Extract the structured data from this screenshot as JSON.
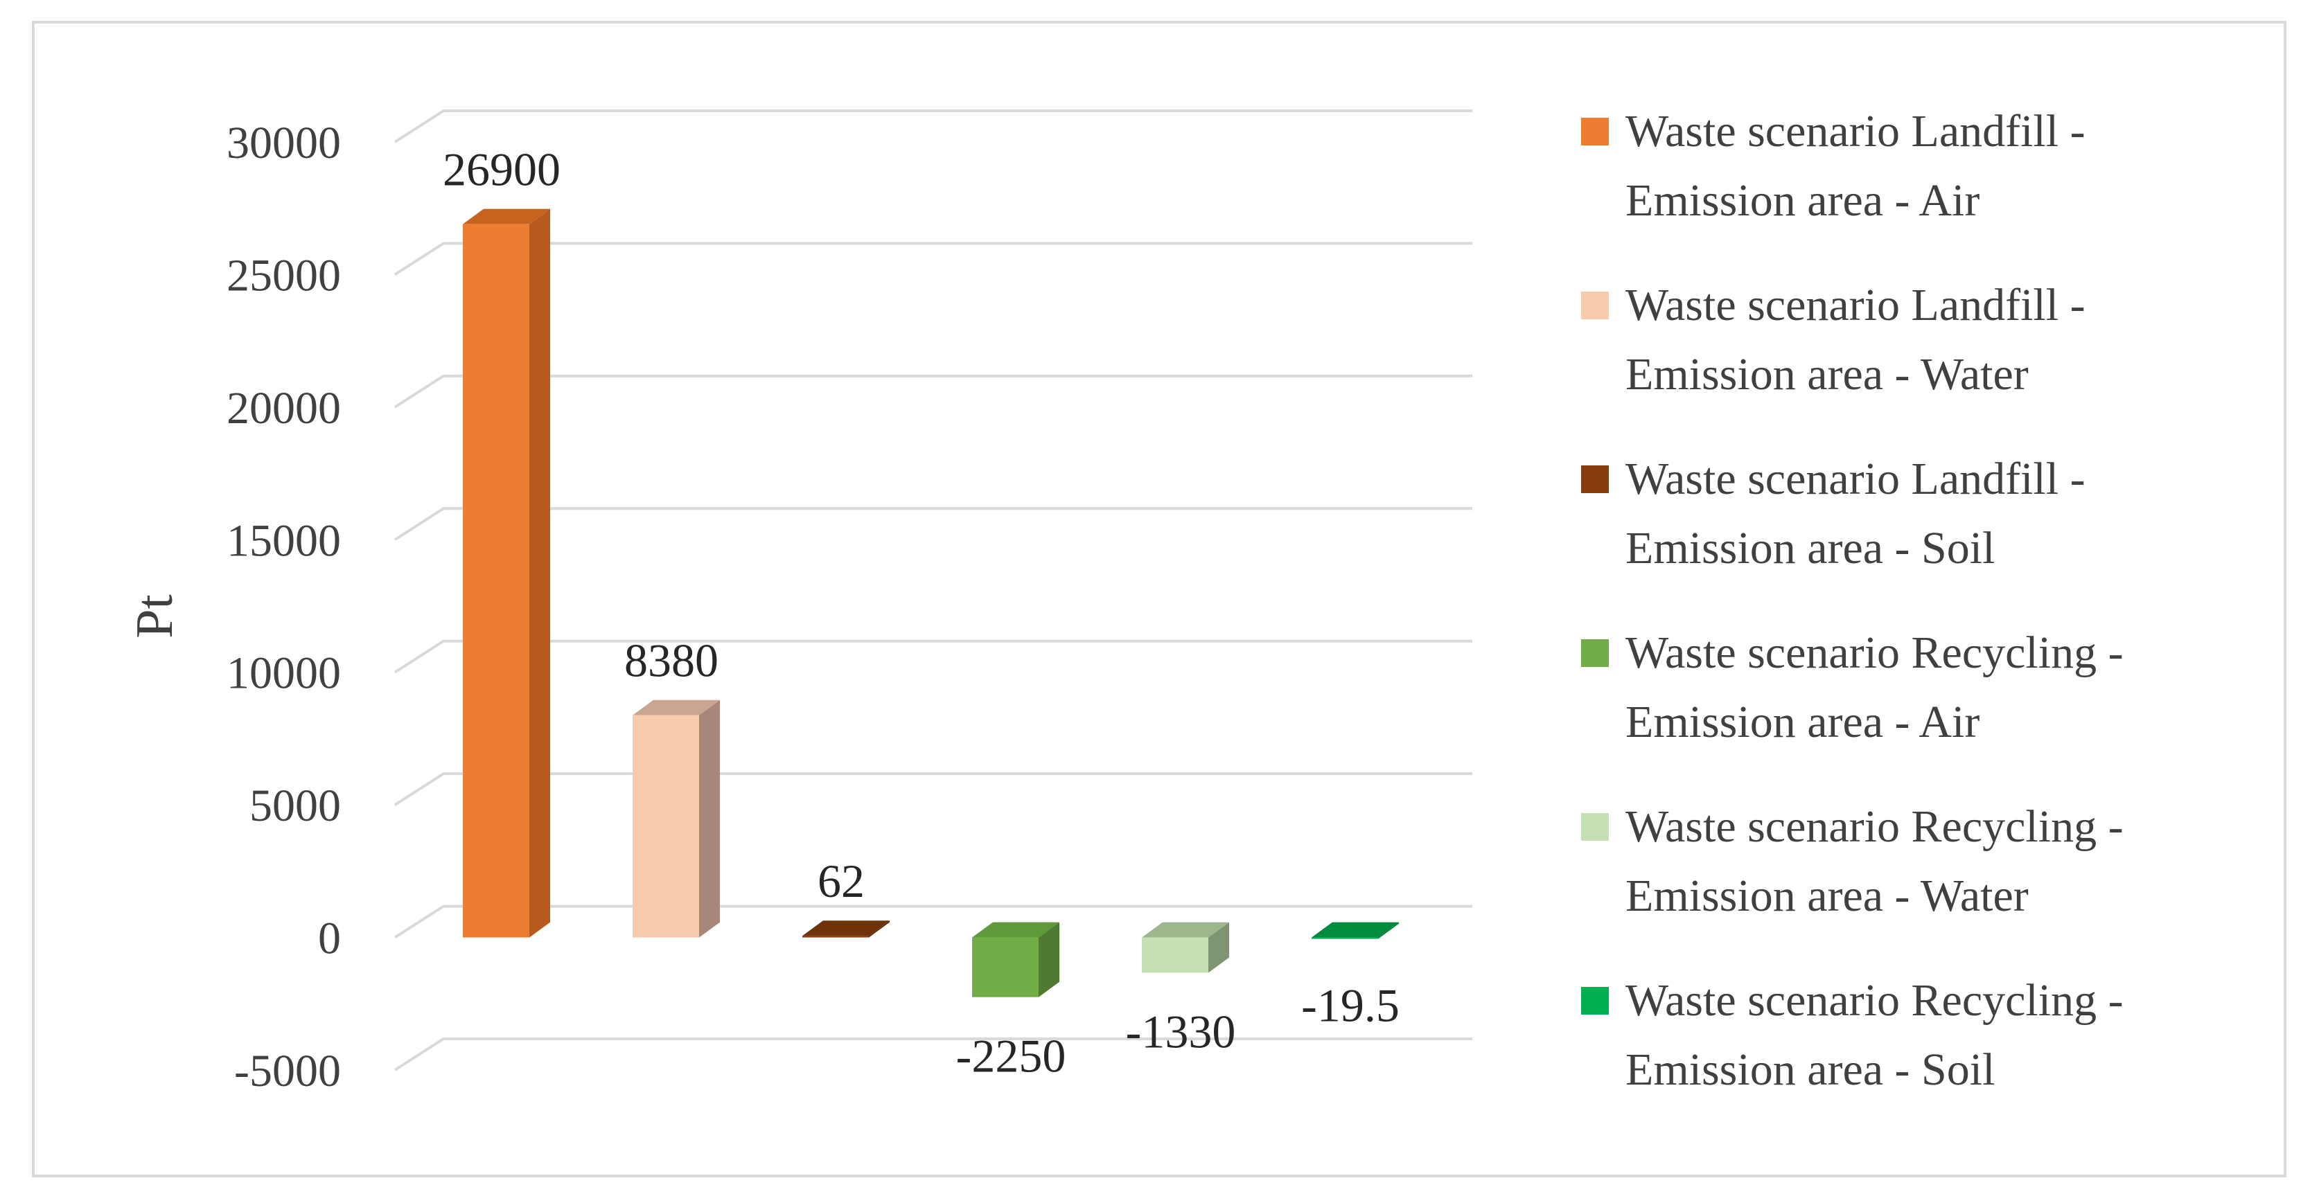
{
  "chart_data": {
    "type": "bar",
    "variant": "3d-column",
    "title": "",
    "xlabel": "",
    "ylabel": "Pt",
    "ylim": [
      -5000,
      30000
    ],
    "yticks": [
      30000,
      25000,
      20000,
      15000,
      10000,
      5000,
      0,
      -5000
    ],
    "grid": true,
    "legend_position": "right",
    "series": [
      {
        "name_line1": "Waste scenario Landfill -",
        "name_line2": "Emission area -  Air",
        "value": 26900,
        "label": "26900",
        "color": "#ED7D31",
        "side_color": "#B85A1E",
        "top_color": "#C8621F"
      },
      {
        "name_line1": "Waste scenario Landfill -",
        "name_line2": "Emission area -  Water",
        "value": 8380,
        "label": "8380",
        "color": "#F8CBAD",
        "side_color": "#A8877A",
        "top_color": "#C9A592"
      },
      {
        "name_line1": "Waste scenario Landfill -",
        "name_line2": "Emission area -  Soil",
        "value": 62,
        "label": "62",
        "color": "#843C0C",
        "side_color": "#5E2A08",
        "top_color": "#6E3309"
      },
      {
        "name_line1": "Waste scenario Recycling -",
        "name_line2": "Emission area -  Air",
        "value": -2250,
        "label": "-2250",
        "color": "#70AD47",
        "side_color": "#4E7A31",
        "top_color": "#5E9A3A"
      },
      {
        "name_line1": "Waste scenario Recycling -",
        "name_line2": "Emission area -  Water",
        "value": -1330,
        "label": "-1330",
        "color": "#C5E0B4",
        "side_color": "#7F9471",
        "top_color": "#9DB68C"
      },
      {
        "name_line1": "Waste scenario Recycling -",
        "name_line2": "Emission area -  Soil",
        "value": -19.5,
        "label": "-19.5",
        "color": "#00B050",
        "side_color": "#007A37",
        "top_color": "#008C3F"
      }
    ]
  }
}
